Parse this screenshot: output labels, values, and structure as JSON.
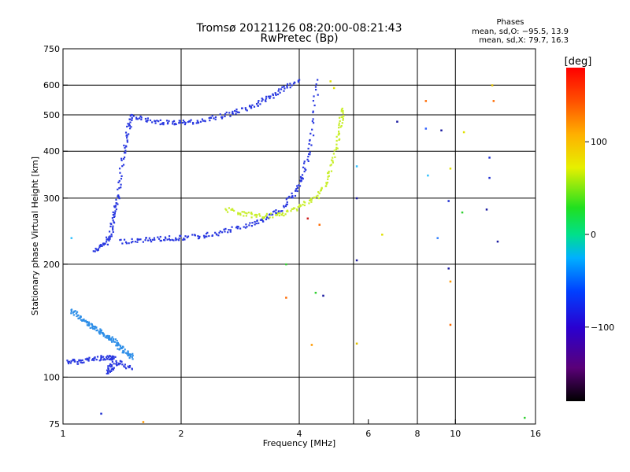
{
  "chart_data": {
    "type": "scatter",
    "title": "Tromsø 20121126 08:20:00-08:21:43",
    "subtitle": "RwPretec (Bp)",
    "phases_box": {
      "title": "Phases",
      "line1": "mean, sd,O: −95.5, 13.9",
      "line2": "mean, sd,X:  79.7, 16.3"
    },
    "xlabel": "Frequency [MHz]",
    "ylabel": "Stationary phase Virtual Height [km]",
    "xscale": "log",
    "yscale": "log",
    "xlim": [
      1,
      16
    ],
    "ylim": [
      75,
      750
    ],
    "x_ticks": [
      {
        "value": 1,
        "label": "1"
      },
      {
        "value": 2,
        "label": "2"
      },
      {
        "value": 4,
        "label": "4"
      },
      {
        "value": 6,
        "label": "6"
      },
      {
        "value": 8,
        "label": "8"
      },
      {
        "value": 10,
        "label": "10"
      },
      {
        "value": 16,
        "label": "16"
      }
    ],
    "x_grid": [
      2,
      4,
      5.5,
      8,
      10
    ],
    "y_ticks": [
      {
        "value": 75,
        "label": "75"
      },
      {
        "value": 100,
        "label": "100"
      },
      {
        "value": 200,
        "label": "200"
      },
      {
        "value": 300,
        "label": "300"
      },
      {
        "value": 400,
        "label": "400"
      },
      {
        "value": 500,
        "label": "500"
      },
      {
        "value": 600,
        "label": "600"
      },
      {
        "value": 750,
        "label": "750"
      }
    ],
    "y_grid": [
      100,
      200,
      300,
      400,
      500,
      600
    ],
    "grid": true,
    "colorbar": {
      "unit": "[deg]",
      "range": [
        -180,
        180
      ],
      "ticks": [
        {
          "value": 100,
          "label": "100"
        },
        {
          "value": 0,
          "label": "0"
        },
        {
          "value": -100,
          "label": "−100"
        }
      ],
      "colormap": "rainbow: black(-180) → purple → blue → cyan → green → yellow → orange → red(180)"
    },
    "series": [
      {
        "values": [
          [
            1.03,
            110
          ],
          [
            1.1,
            110
          ],
          [
            1.2,
            112
          ],
          [
            1.3,
            113
          ],
          [
            1.35,
            112
          ],
          [
            1.3,
            103
          ],
          [
            1.38,
            110
          ],
          [
            1.5,
            105
          ]
        ]
      },
      {
        "values": [
          [
            1.05,
            150
          ],
          [
            1.1,
            145
          ],
          [
            1.15,
            140
          ],
          [
            1.2,
            135
          ],
          [
            1.25,
            132
          ],
          [
            1.3,
            128
          ],
          [
            1.35,
            125
          ],
          [
            1.4,
            120
          ],
          [
            1.45,
            116
          ],
          [
            1.5,
            113
          ]
        ]
      },
      {
        "values": [
          [
            1.2,
            218
          ],
          [
            1.28,
            225
          ],
          [
            1.32,
            240
          ],
          [
            1.35,
            270
          ],
          [
            1.38,
            300
          ],
          [
            1.42,
            380
          ],
          [
            1.46,
            450
          ],
          [
            1.5,
            500
          ]
        ]
      },
      {
        "values": [
          [
            1.4,
            230
          ],
          [
            1.6,
            232
          ],
          [
            1.8,
            234
          ],
          [
            2.0,
            235
          ],
          [
            2.3,
            238
          ],
          [
            2.6,
            245
          ],
          [
            3.0,
            255
          ],
          [
            3.3,
            265
          ],
          [
            3.6,
            280
          ],
          [
            3.9,
            310
          ],
          [
            4.1,
            350
          ],
          [
            4.3,
            430
          ],
          [
            4.45,
            620
          ]
        ]
      },
      {
        "values": [
          [
            2.6,
            280
          ],
          [
            2.9,
            272
          ],
          [
            3.2,
            268
          ],
          [
            3.6,
            270
          ],
          [
            4.0,
            285
          ],
          [
            4.4,
            300
          ],
          [
            4.7,
            330
          ],
          [
            4.95,
            400
          ],
          [
            5.1,
            470
          ],
          [
            5.15,
            520
          ]
        ]
      },
      {
        "values": [
          [
            1.5,
            495
          ],
          [
            1.7,
            480
          ],
          [
            1.9,
            475
          ],
          [
            2.1,
            478
          ],
          [
            2.4,
            490
          ],
          [
            2.7,
            505
          ],
          [
            3.0,
            525
          ],
          [
            3.3,
            550
          ],
          [
            3.6,
            580
          ],
          [
            4.0,
            620
          ]
        ]
      }
    ],
    "series_colors": [
      "#2a39e0",
      "#2f8fe8",
      "#2a39e0",
      "#2a39e0",
      "#c8ee2b",
      "#2a39e0"
    ],
    "scattered_points": [
      {
        "x": 8.4,
        "y": 545,
        "color": "#ff6a00"
      },
      {
        "x": 9.2,
        "y": 455,
        "color": "#1a1aa0"
      },
      {
        "x": 10.5,
        "y": 450,
        "color": "#e0e000"
      },
      {
        "x": 12.5,
        "y": 545,
        "color": "#ff6a00"
      },
      {
        "x": 12.4,
        "y": 600,
        "color": "#e0c000"
      },
      {
        "x": 7.1,
        "y": 480,
        "color": "#1a1aa0"
      },
      {
        "x": 8.4,
        "y": 460,
        "color": "#3060ff"
      },
      {
        "x": 9.7,
        "y": 360,
        "color": "#e0e000"
      },
      {
        "x": 8.5,
        "y": 345,
        "color": "#30c0ff"
      },
      {
        "x": 12.2,
        "y": 385,
        "color": "#2030d0"
      },
      {
        "x": 12.2,
        "y": 340,
        "color": "#2030d0"
      },
      {
        "x": 12.0,
        "y": 280,
        "color": "#1a1aa0"
      },
      {
        "x": 9.6,
        "y": 295,
        "color": "#2030d0"
      },
      {
        "x": 10.4,
        "y": 275,
        "color": "#30d030"
      },
      {
        "x": 9.0,
        "y": 235,
        "color": "#3080ff"
      },
      {
        "x": 12.8,
        "y": 230,
        "color": "#1a1aa0"
      },
      {
        "x": 6.5,
        "y": 240,
        "color": "#e0e000"
      },
      {
        "x": 5.6,
        "y": 205,
        "color": "#1a1aa0"
      },
      {
        "x": 9.6,
        "y": 195,
        "color": "#1a1aa0"
      },
      {
        "x": 9.7,
        "y": 180,
        "color": "#ff9900"
      },
      {
        "x": 9.7,
        "y": 138,
        "color": "#ff6a00"
      },
      {
        "x": 5.6,
        "y": 123,
        "color": "#e0c000"
      },
      {
        "x": 4.3,
        "y": 122,
        "color": "#ff9900"
      },
      {
        "x": 3.7,
        "y": 163,
        "color": "#ff6a00"
      },
      {
        "x": 4.4,
        "y": 168,
        "color": "#30d030"
      },
      {
        "x": 4.6,
        "y": 165,
        "color": "#1a1aa0"
      },
      {
        "x": 3.7,
        "y": 200,
        "color": "#30d030"
      },
      {
        "x": 4.2,
        "y": 265,
        "color": "#d02020"
      },
      {
        "x": 4.5,
        "y": 255,
        "color": "#ff6a00"
      },
      {
        "x": 15.0,
        "y": 78,
        "color": "#30d030"
      },
      {
        "x": 1.6,
        "y": 76,
        "color": "#ff9900"
      },
      {
        "x": 1.25,
        "y": 80,
        "color": "#2030d0"
      },
      {
        "x": 1.05,
        "y": 235,
        "color": "#30c0ff"
      },
      {
        "x": 5.6,
        "y": 300,
        "color": "#1a1aa0"
      },
      {
        "x": 5.6,
        "y": 365,
        "color": "#30c0ff"
      },
      {
        "x": 4.8,
        "y": 615,
        "color": "#e0e000"
      },
      {
        "x": 4.9,
        "y": 590,
        "color": "#e0e000"
      }
    ]
  }
}
